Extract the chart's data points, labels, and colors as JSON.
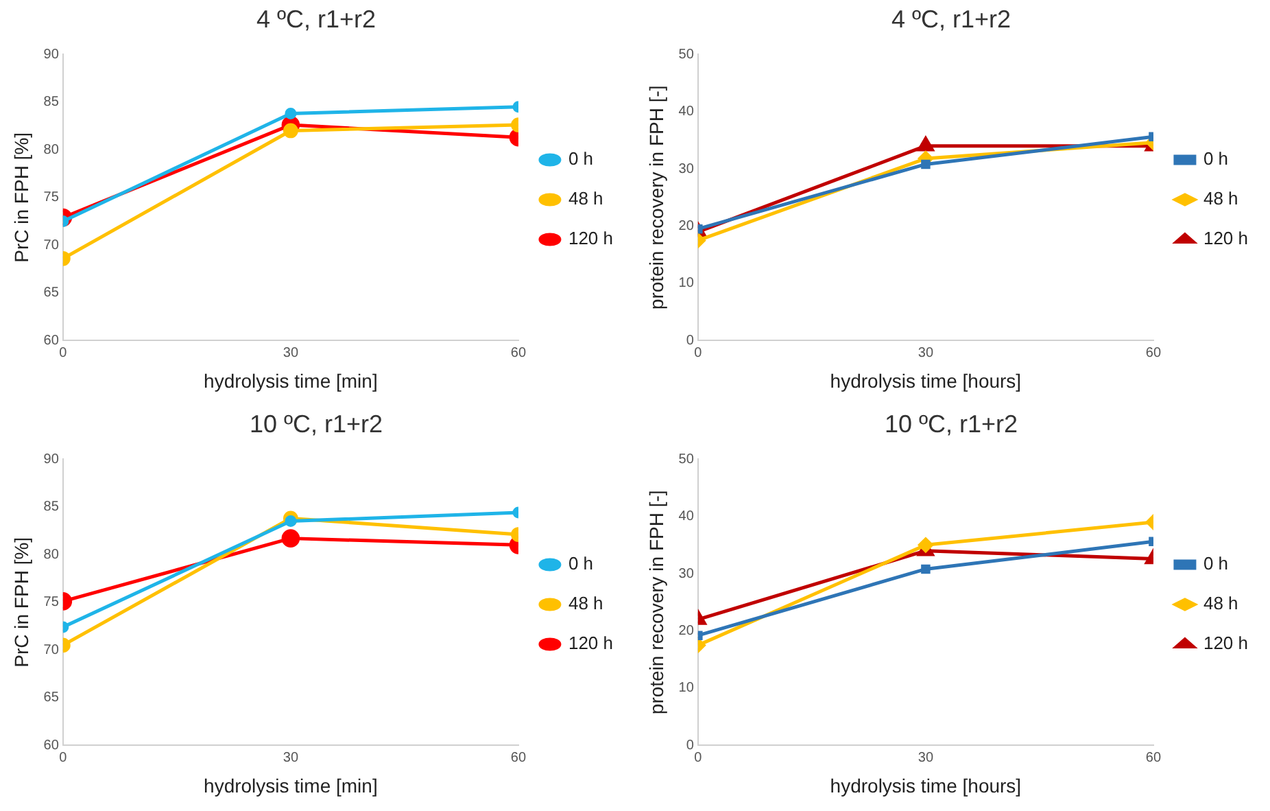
{
  "chart_data": [
    {
      "type": "line",
      "title": "4 ºC, r1+r2",
      "xlabel": "hydrolysis time [min]",
      "ylabel": "PrC in FPH [%]",
      "x": [
        0,
        30,
        60
      ],
      "xlim": [
        0,
        60
      ],
      "xticks": [
        0,
        30,
        60
      ],
      "ylim": [
        60,
        90
      ],
      "yticks": [
        60,
        65,
        70,
        75,
        80,
        85,
        90
      ],
      "grid": false,
      "legend": "right",
      "marker": "circle",
      "series": [
        {
          "name": "0 h",
          "color": "#1fb4e8",
          "values": [
            72.5,
            83.8,
            84.5
          ]
        },
        {
          "name": "48 h",
          "color": "#ffc000",
          "values": [
            68.6,
            82.0,
            82.6
          ]
        },
        {
          "name": "120 h",
          "color": "#ff0000",
          "values": [
            72.9,
            82.6,
            81.3
          ]
        }
      ]
    },
    {
      "type": "line",
      "title": "4 ºC, r1+r2",
      "xlabel": "hydrolysis time [hours]",
      "ylabel": "protein recovery in FPH [-]",
      "x": [
        0,
        30,
        60
      ],
      "xlim": [
        0,
        60
      ],
      "xticks": [
        0,
        30,
        60
      ],
      "ylim": [
        0,
        50
      ],
      "yticks": [
        0,
        10,
        20,
        30,
        40,
        50
      ],
      "grid": false,
      "legend": "right",
      "series": [
        {
          "name": "0 h",
          "color": "#2e75b6",
          "marker": "square",
          "values": [
            19.5,
            30.8,
            35.6
          ]
        },
        {
          "name": "48 h",
          "color": "#ffc000",
          "marker": "diamond",
          "values": [
            17.5,
            31.8,
            34.6
          ]
        },
        {
          "name": "120 h",
          "color": "#c00000",
          "marker": "triangle",
          "values": [
            19.0,
            34.0,
            34.0
          ]
        }
      ]
    },
    {
      "type": "line",
      "title": "10 ºC, r1+r2",
      "xlabel": "hydrolysis time [min]",
      "ylabel": "PrC in FPH [%]",
      "x": [
        0,
        30,
        60
      ],
      "xlim": [
        0,
        60
      ],
      "xticks": [
        0,
        30,
        60
      ],
      "ylim": [
        60,
        90
      ],
      "yticks": [
        60,
        65,
        70,
        75,
        80,
        85,
        90
      ],
      "grid": false,
      "legend": "right",
      "marker": "circle",
      "series": [
        {
          "name": "0 h",
          "color": "#1fb4e8",
          "values": [
            72.4,
            83.5,
            84.4
          ]
        },
        {
          "name": "48 h",
          "color": "#ffc000",
          "values": [
            70.5,
            83.8,
            82.1
          ]
        },
        {
          "name": "120 h",
          "color": "#ff0000",
          "values": [
            75.1,
            81.7,
            81.0
          ]
        }
      ]
    },
    {
      "type": "line",
      "title": "10 ºC, r1+r2",
      "xlabel": "hydrolysis time [hours]",
      "ylabel": "protein recovery in FPH [-]",
      "x": [
        0,
        30,
        60
      ],
      "xlim": [
        0,
        60
      ],
      "xticks": [
        0,
        30,
        60
      ],
      "ylim": [
        0,
        50
      ],
      "yticks": [
        0,
        10,
        20,
        30,
        40,
        50
      ],
      "grid": false,
      "legend": "right",
      "series": [
        {
          "name": "0 h",
          "color": "#2e75b6",
          "marker": "square",
          "values": [
            19.2,
            30.8,
            35.6
          ]
        },
        {
          "name": "48 h",
          "color": "#ffc000",
          "marker": "diamond",
          "values": [
            17.5,
            35.0,
            39.0
          ]
        },
        {
          "name": "120 h",
          "color": "#c00000",
          "marker": "triangle",
          "values": [
            22.0,
            34.0,
            32.6
          ]
        }
      ]
    }
  ]
}
